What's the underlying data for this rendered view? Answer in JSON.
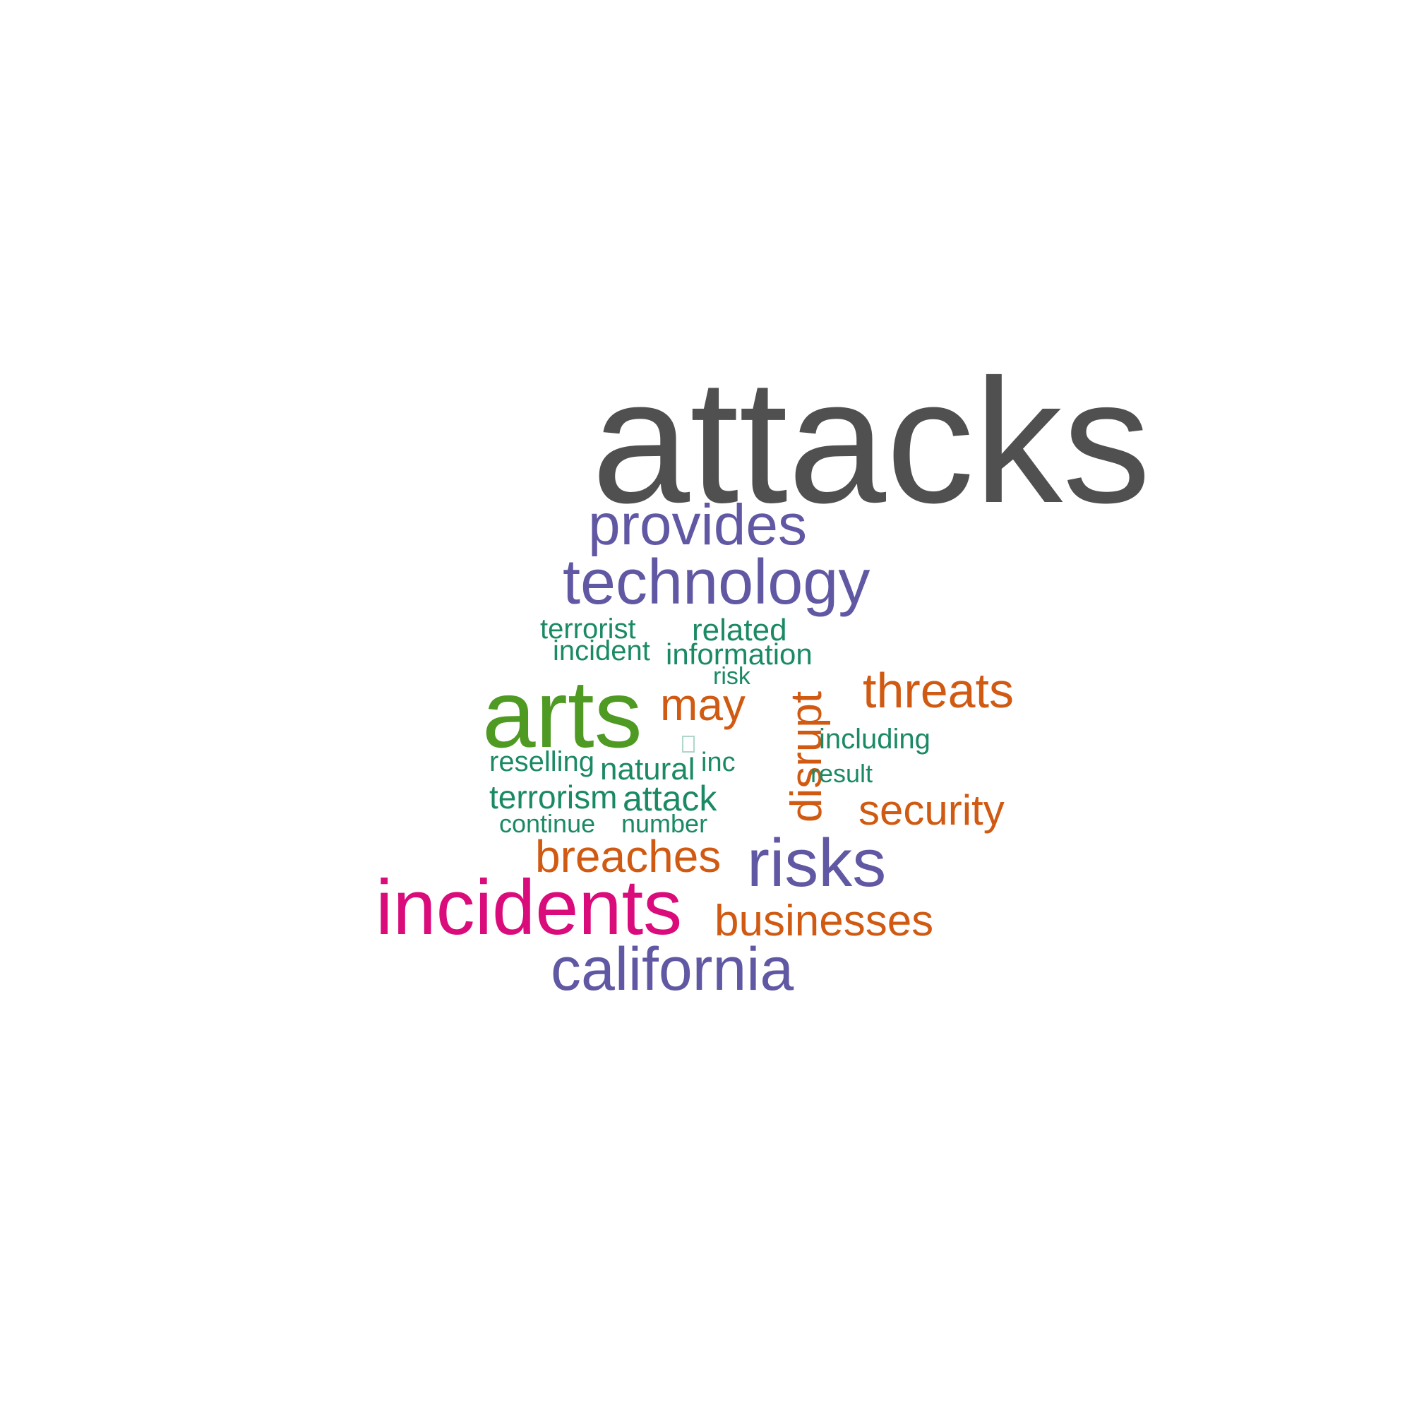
{
  "words": [
    {
      "id": "attacks",
      "text": "attacks",
      "color": "#505050"
    },
    {
      "id": "provides",
      "text": "provides",
      "color": "#6158a4"
    },
    {
      "id": "technology",
      "text": "technology",
      "color": "#6158a4"
    },
    {
      "id": "terrorist",
      "text": "terrorist",
      "color": "#1b8a64"
    },
    {
      "id": "related",
      "text": "related",
      "color": "#1b8a64"
    },
    {
      "id": "incident",
      "text": "incident",
      "color": "#1b8a64"
    },
    {
      "id": "information",
      "text": "information",
      "color": "#1b8a64"
    },
    {
      "id": "risk",
      "text": "risk",
      "color": "#1b8a64"
    },
    {
      "id": "arts",
      "text": "arts",
      "color": "#4f9a22"
    },
    {
      "id": "may",
      "text": "may",
      "color": "#d05a12"
    },
    {
      "id": "threats",
      "text": "threats",
      "color": "#d05a12"
    },
    {
      "id": "disrupt",
      "text": "disrupt",
      "color": "#d05a12"
    },
    {
      "id": "including",
      "text": "including",
      "color": "#1b8a64"
    },
    {
      "id": "reselling",
      "text": "reselling",
      "color": "#1b8a64"
    },
    {
      "id": "natural",
      "text": "natural",
      "color": "#1b8a64"
    },
    {
      "id": "inc",
      "text": "inc",
      "color": "#1b8a64"
    },
    {
      "id": "result",
      "text": "result",
      "color": "#1b8a64"
    },
    {
      "id": "terrorism",
      "text": "terrorism",
      "color": "#1b8a64"
    },
    {
      "id": "attack",
      "text": "attack",
      "color": "#1b8a64"
    },
    {
      "id": "security",
      "text": "security",
      "color": "#d05a12"
    },
    {
      "id": "continue",
      "text": "continue",
      "color": "#1b8a64"
    },
    {
      "id": "number",
      "text": "number",
      "color": "#1b8a64"
    },
    {
      "id": "breaches",
      "text": "breaches",
      "color": "#d05a12"
    },
    {
      "id": "risks",
      "text": "risks",
      "color": "#6158a4"
    },
    {
      "id": "incidents",
      "text": "incidents",
      "color": "#da0b7b"
    },
    {
      "id": "businesses",
      "text": "businesses",
      "color": "#d05a12"
    },
    {
      "id": "california",
      "text": "california",
      "color": "#6158a4"
    }
  ]
}
